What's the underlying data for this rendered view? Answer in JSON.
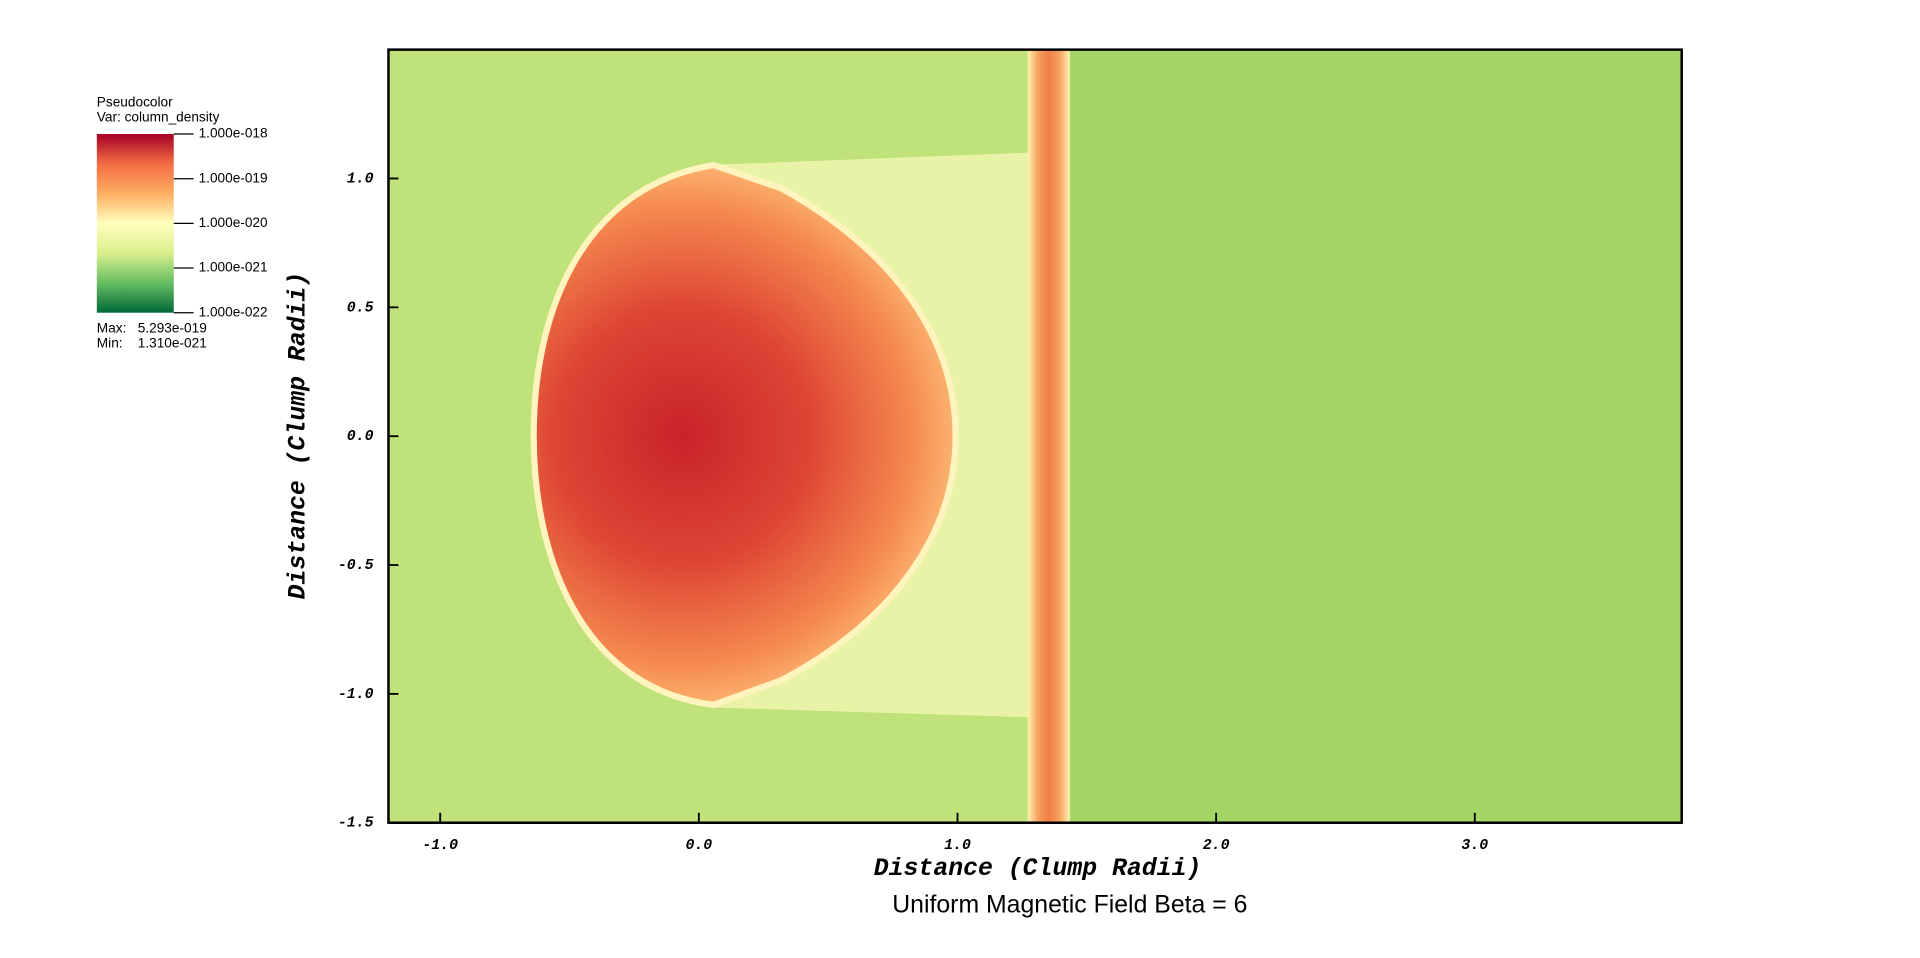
{
  "chart_data": {
    "type": "pseudocolor",
    "title": "Uniform Magnetic Field Beta = 6",
    "xlabel": "Distance (Clump Radii)",
    "ylabel": "Distance (Clump Radii)",
    "xlim": [
      -1.2,
      3.8
    ],
    "ylim": [
      -1.5,
      1.5
    ],
    "xticks": [
      {
        "value": -1,
        "label": "-1.0"
      },
      {
        "value": 0,
        "label": "0.0"
      },
      {
        "value": 1,
        "label": "1.0"
      },
      {
        "value": 2,
        "label": "2.0"
      },
      {
        "value": 3,
        "label": "3.0"
      }
    ],
    "yticks": [
      {
        "value": -1.5,
        "label": "-1.5"
      },
      {
        "value": -1,
        "label": "-1.0"
      },
      {
        "value": -0.5,
        "label": "-0.5"
      },
      {
        "value": 0,
        "label": "0.0"
      },
      {
        "value": 0.5,
        "label": "0.5"
      },
      {
        "value": 1,
        "label": "1.0"
      }
    ],
    "legend": {
      "title": "Pseudocolor",
      "variable": "Var: column_density",
      "log": true,
      "clim": [
        1e-22,
        1e-18
      ],
      "colors": [
        "#006837",
        "#66bd63",
        "#d9ef8b",
        "#ffffbf",
        "#fdae61",
        "#f46d43",
        "#a50026"
      ],
      "ticks": [
        {
          "value": 1e-18,
          "label": "1.000e-018"
        },
        {
          "value": 1e-19,
          "label": "1.000e-019"
        },
        {
          "value": 1e-20,
          "label": "1.000e-020"
        },
        {
          "value": 1e-21,
          "label": "1.000e-021"
        },
        {
          "value": 1e-22,
          "label": "1.000e-022"
        }
      ],
      "max_label": "Max:",
      "max": {
        "value": 5.293e-19,
        "label": "5.293e-019"
      },
      "min_label": "Min:",
      "min": {
        "value": 1.31e-21,
        "label": "1.310e-021"
      }
    }
  }
}
